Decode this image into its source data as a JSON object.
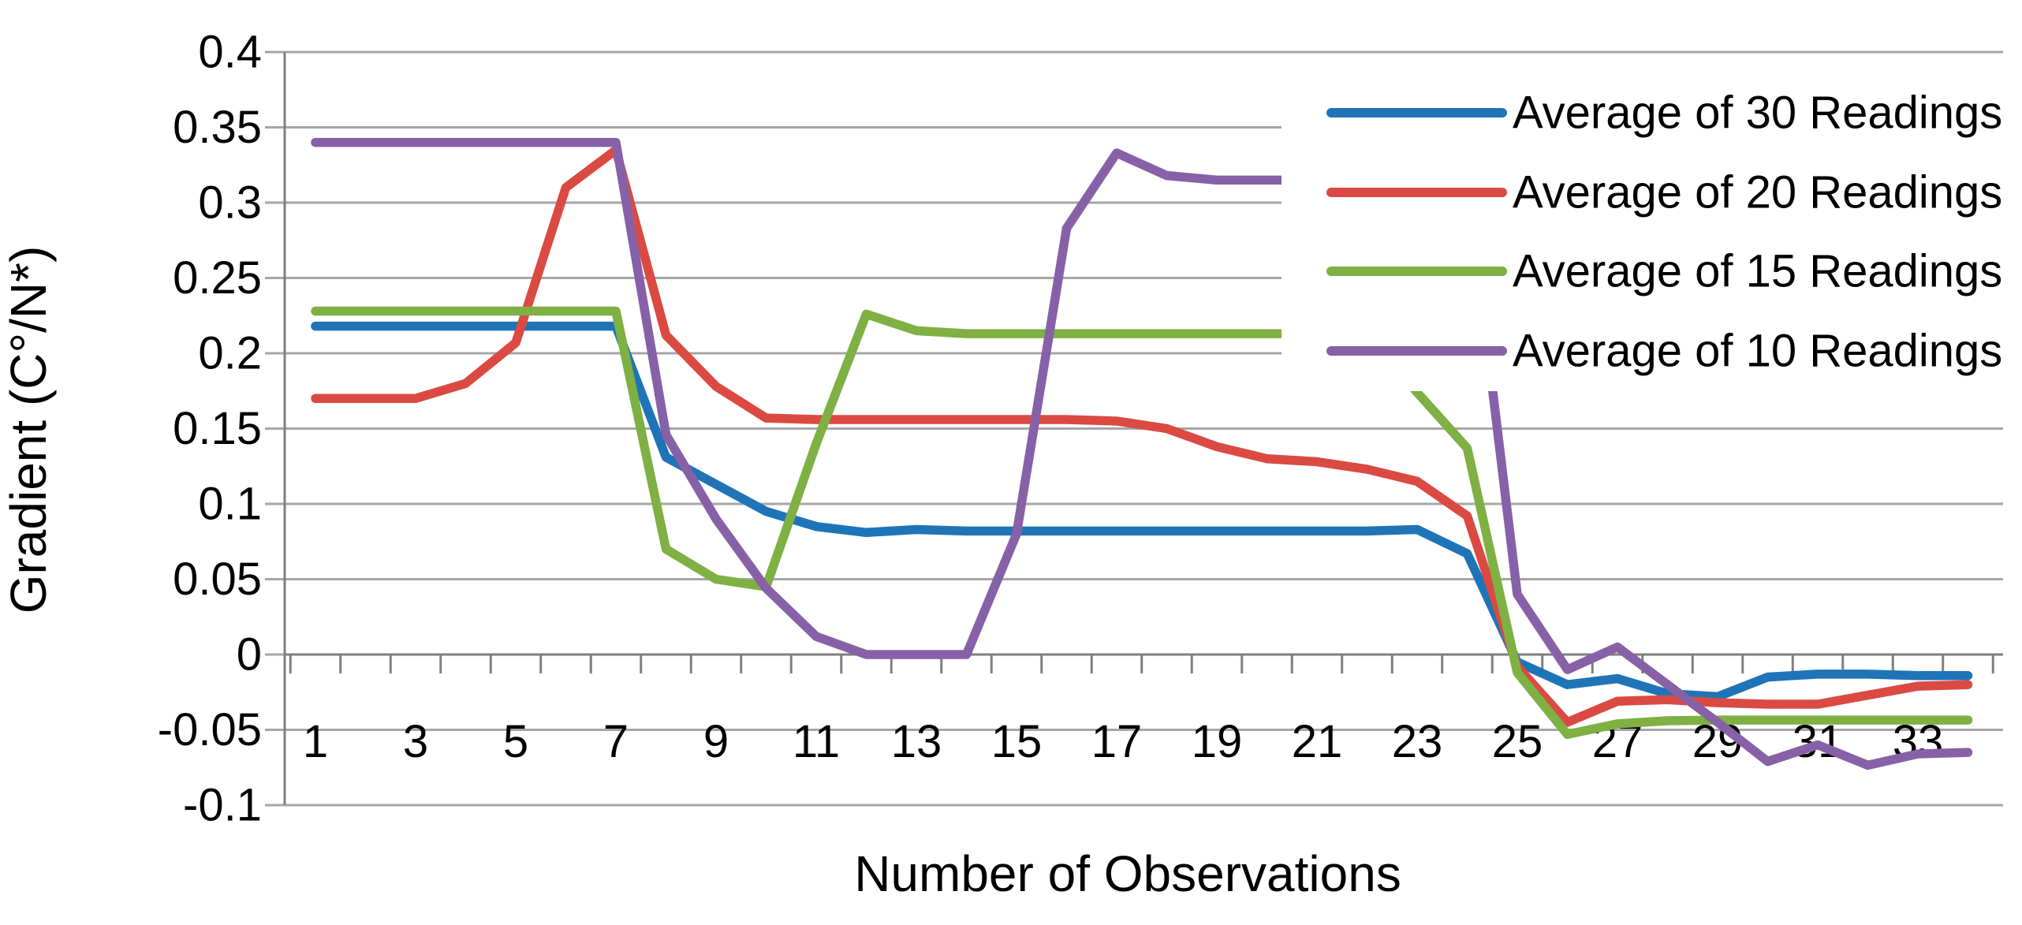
{
  "chart_data": {
    "type": "line",
    "title": "",
    "xlabel": "Number of Observations",
    "ylabel": "Gradient (C°/N*)",
    "x": [
      1,
      2,
      3,
      4,
      5,
      6,
      7,
      8,
      9,
      10,
      11,
      12,
      13,
      14,
      15,
      16,
      17,
      18,
      19,
      20,
      21,
      22,
      23,
      24,
      25,
      26,
      27,
      28,
      29,
      30,
      31,
      32,
      33,
      34
    ],
    "xtick_labels": [
      "1",
      "3",
      "5",
      "7",
      "9",
      "11",
      "13",
      "15",
      "17",
      "19",
      "21",
      "23",
      "25",
      "27",
      "29",
      "31",
      "33"
    ],
    "yticks": [
      0.4,
      0.35,
      0.3,
      0.25,
      0.2,
      0.15,
      0.1,
      0.05,
      0,
      -0.05,
      -0.1
    ],
    "ytick_labels": [
      "0.4",
      "0.35",
      "0.3",
      "0.25",
      "0.2",
      "0.15",
      "0.1",
      "0.05",
      "0",
      "-0.05",
      "-0.1"
    ],
    "ylim": [
      -0.1,
      0.4
    ],
    "xlim": [
      0.5,
      34.8
    ],
    "grid": true,
    "legend_position": "top-right",
    "axis_color": "#7F7F7F",
    "grid_color": "#A6A6A6",
    "series": [
      {
        "name": "Average of 30 Readings",
        "color": "#1F74B8",
        "values": [
          0.218,
          0.218,
          0.218,
          0.218,
          0.218,
          0.218,
          0.218,
          0.131,
          0.113,
          0.095,
          0.085,
          0.081,
          0.083,
          0.082,
          0.082,
          0.082,
          0.082,
          0.082,
          0.082,
          0.082,
          0.082,
          0.082,
          0.083,
          0.067,
          -0.005,
          -0.02,
          -0.016,
          -0.026,
          -0.028,
          -0.015,
          -0.013,
          -0.013,
          -0.014,
          -0.014
        ]
      },
      {
        "name": "Average of 20 Readings",
        "color": "#DB4A42",
        "values": [
          0.17,
          0.17,
          0.17,
          0.18,
          0.207,
          0.31,
          0.335,
          0.212,
          0.178,
          0.157,
          0.156,
          0.156,
          0.156,
          0.156,
          0.156,
          0.156,
          0.155,
          0.15,
          0.138,
          0.13,
          0.128,
          0.123,
          0.115,
          0.092,
          -0.008,
          -0.045,
          -0.031,
          -0.03,
          -0.032,
          -0.033,
          -0.033,
          -0.027,
          -0.021,
          -0.02
        ]
      },
      {
        "name": "Average of 15 Readings",
        "color": "#7FB043",
        "values": [
          0.228,
          0.228,
          0.228,
          0.228,
          0.228,
          0.228,
          0.228,
          0.07,
          0.05,
          0.045,
          0.14,
          0.226,
          0.215,
          0.213,
          0.213,
          0.213,
          0.213,
          0.213,
          0.213,
          0.213,
          0.213,
          0.213,
          0.174,
          0.137,
          -0.012,
          -0.053,
          -0.046,
          -0.044,
          -0.0435,
          -0.0435,
          -0.0435,
          -0.0435,
          -0.0435,
          -0.0435
        ]
      },
      {
        "name": "Average of 10 Readings",
        "color": "#8761A7",
        "values": [
          0.34,
          0.34,
          0.34,
          0.34,
          0.34,
          0.34,
          0.34,
          0.146,
          0.09,
          0.044,
          0.012,
          0,
          0,
          0,
          0.08,
          0.283,
          0.333,
          0.318,
          0.315,
          0.315,
          0.315,
          0.315,
          0.315,
          0.315,
          0.04,
          -0.01,
          0.005,
          -0.02,
          -0.045,
          -0.071,
          -0.06,
          -0.0735,
          -0.066,
          -0.065
        ]
      }
    ]
  }
}
